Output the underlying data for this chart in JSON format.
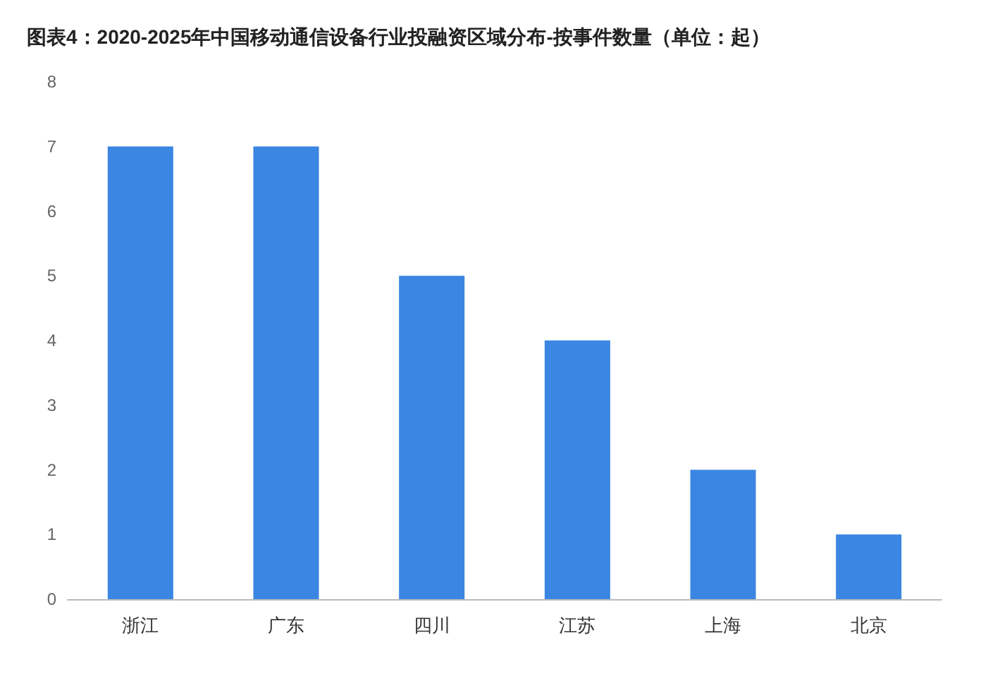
{
  "chart_data": {
    "type": "bar",
    "title": "图表4：2020-2025年中国移动通信设备行业投融资区域分布-按事件数量（单位：起）",
    "categories": [
      "浙江",
      "广东",
      "四川",
      "江苏",
      "上海",
      "北京"
    ],
    "values": [
      7,
      7,
      5,
      4,
      2,
      1
    ],
    "color": "#3a86e2",
    "ylim": [
      0,
      8
    ],
    "yticks": [
      0,
      1,
      2,
      3,
      4,
      5,
      6,
      7,
      8
    ],
    "grid": false
  }
}
